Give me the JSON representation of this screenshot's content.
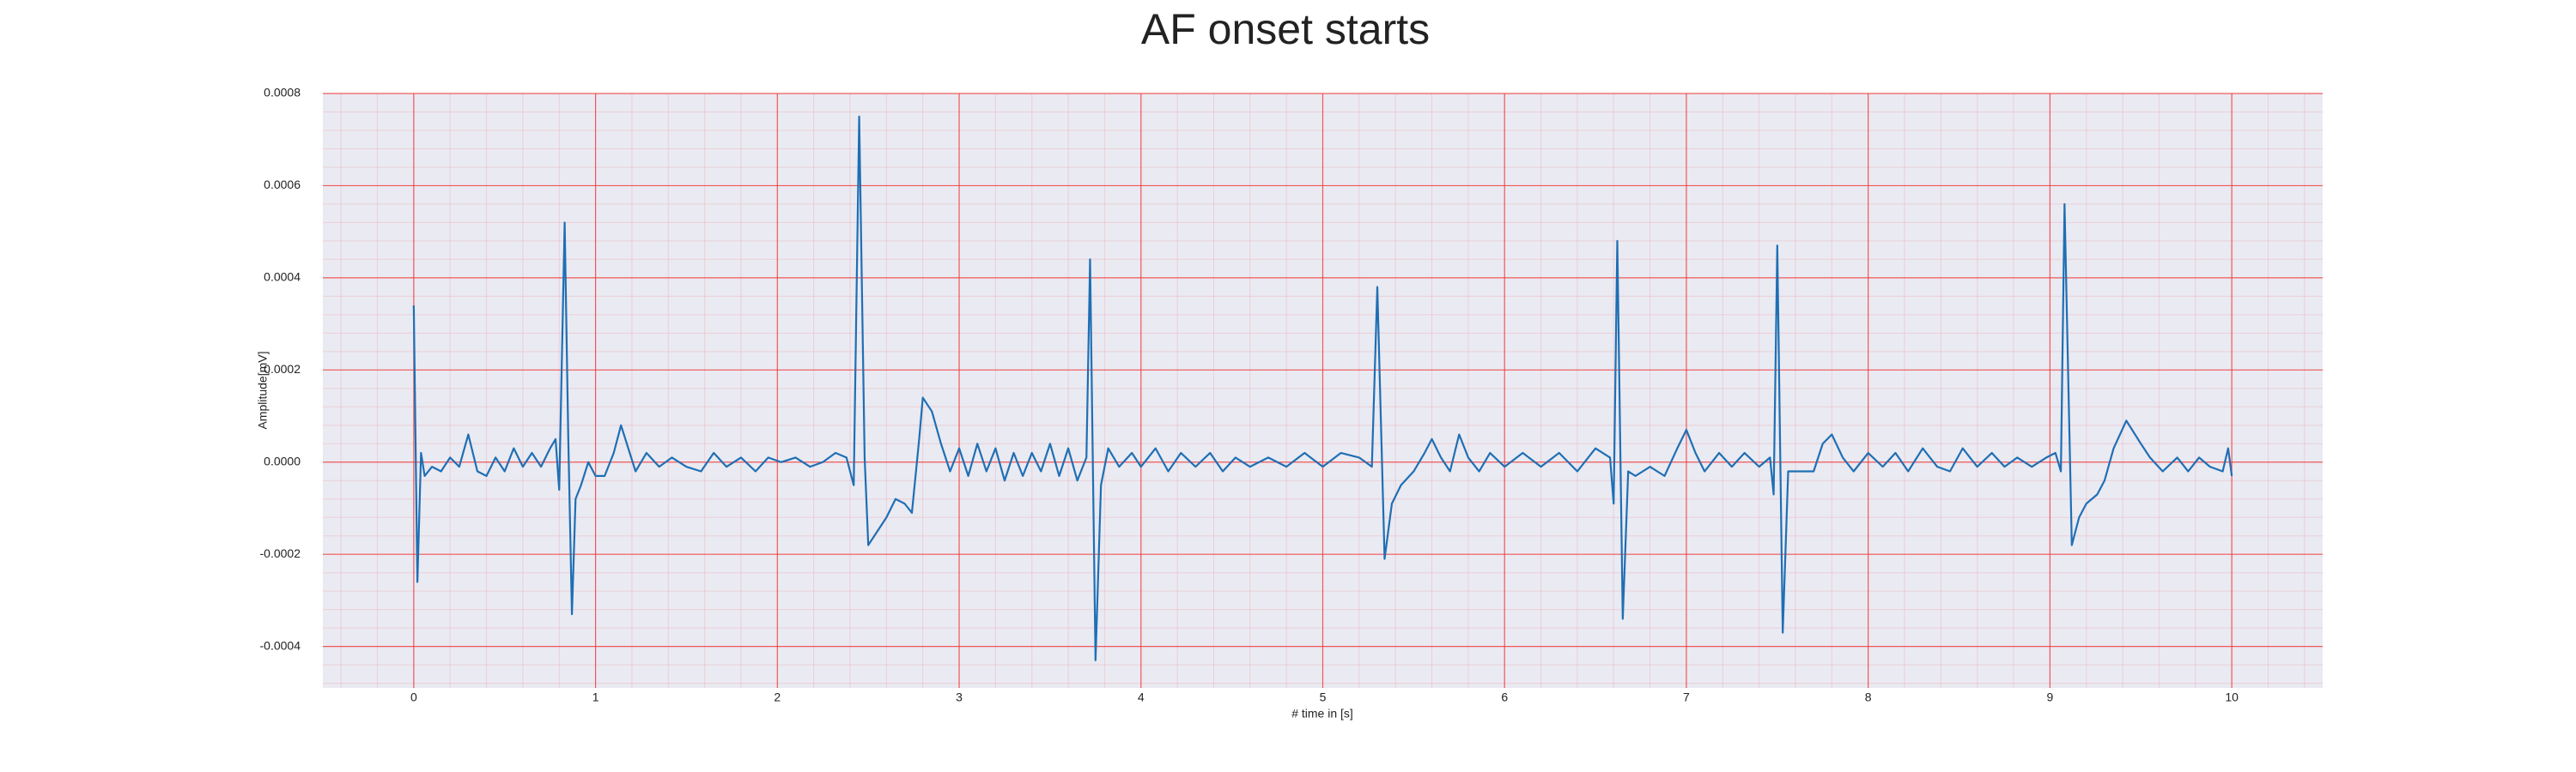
{
  "chart_data": {
    "type": "line",
    "title": "AF onset starts",
    "x_label": "# time in [s]",
    "y_label": "Amplitude[mV]",
    "xlim": [
      -0.5,
      10.5
    ],
    "xticks": [
      0,
      1,
      2,
      3,
      4,
      5,
      6,
      7,
      8,
      9,
      10
    ],
    "ylim": [
      -0.00049,
      0.0008
    ],
    "yticks": [
      {
        "value": -0.0004,
        "label": "-0.0004"
      },
      {
        "value": -0.0002,
        "label": "-0.0002"
      },
      {
        "value": 0,
        "label": "0.0000"
      },
      {
        "value": 0.0002,
        "label": "0.0002"
      },
      {
        "value": 0.0004,
        "label": "0.0004"
      },
      {
        "value": 0.0006,
        "label": "0.0006"
      },
      {
        "value": 0.0008,
        "label": "0.0008"
      }
    ],
    "grid": true,
    "minor_grid": true,
    "grid_color": "#f03a3a",
    "background": "#eaeaf2",
    "series": [
      {
        "color": "#1f6fb4",
        "x": [
          0,
          0.02,
          0.04,
          0.06,
          0.1,
          0.15,
          0.2,
          0.25,
          0.3,
          0.35,
          0.4,
          0.45,
          0.5,
          0.55,
          0.6,
          0.65,
          0.7,
          0.75,
          0.78,
          0.8,
          0.83,
          0.85,
          0.87,
          0.89,
          0.92,
          0.96,
          1.0,
          1.05,
          1.1,
          1.14,
          1.18,
          1.22,
          1.28,
          1.35,
          1.42,
          1.5,
          1.58,
          1.65,
          1.72,
          1.8,
          1.88,
          1.95,
          2.02,
          2.1,
          2.18,
          2.25,
          2.32,
          2.38,
          2.42,
          2.45,
          2.48,
          2.5,
          2.55,
          2.6,
          2.65,
          2.7,
          2.74,
          2.78,
          2.8,
          2.85,
          2.9,
          2.95,
          3.0,
          3.05,
          3.1,
          3.15,
          3.2,
          3.25,
          3.3,
          3.35,
          3.4,
          3.45,
          3.5,
          3.55,
          3.6,
          3.65,
          3.7,
          3.72,
          3.75,
          3.78,
          3.82,
          3.88,
          3.95,
          4.0,
          4.08,
          4.15,
          4.22,
          4.3,
          4.38,
          4.45,
          4.52,
          4.6,
          4.7,
          4.8,
          4.9,
          5.0,
          5.1,
          5.2,
          5.27,
          5.3,
          5.34,
          5.38,
          5.43,
          5.5,
          5.56,
          5.6,
          5.65,
          5.7,
          5.75,
          5.8,
          5.86,
          5.92,
          6.0,
          6.1,
          6.2,
          6.3,
          6.4,
          6.5,
          6.58,
          6.6,
          6.62,
          6.65,
          6.68,
          6.72,
          6.8,
          6.88,
          6.95,
          7.0,
          7.05,
          7.1,
          7.18,
          7.25,
          7.32,
          7.4,
          7.46,
          7.48,
          7.5,
          7.53,
          7.56,
          7.62,
          7.7,
          7.75,
          7.8,
          7.86,
          7.92,
          8.0,
          8.08,
          8.15,
          8.22,
          8.3,
          8.38,
          8.45,
          8.52,
          8.6,
          8.68,
          8.75,
          8.82,
          8.9,
          8.98,
          9.03,
          9.06,
          9.08,
          9.12,
          9.16,
          9.2,
          9.26,
          9.3,
          9.35,
          9.42,
          9.5,
          9.55,
          9.62,
          9.7,
          9.76,
          9.82,
          9.88,
          9.95,
          9.98,
          10.0
        ],
        "values": [
          0.00034,
          -0.00026,
          2e-05,
          -3e-05,
          -1e-05,
          -2e-05,
          1e-05,
          -1e-05,
          6e-05,
          -2e-05,
          -3e-05,
          1e-05,
          -2e-05,
          3e-05,
          -1e-05,
          2e-05,
          -1e-05,
          3e-05,
          5e-05,
          -6e-05,
          0.00052,
          5e-05,
          -0.00033,
          -8e-05,
          -5e-05,
          0,
          -3e-05,
          -3e-05,
          2e-05,
          8e-05,
          3e-05,
          -2e-05,
          2e-05,
          -1e-05,
          1e-05,
          -1e-05,
          -2e-05,
          2e-05,
          -1e-05,
          1e-05,
          -2e-05,
          1e-05,
          0,
          1e-05,
          -1e-05,
          0,
          2e-05,
          1e-05,
          -5e-05,
          0.00075,
          1e-05,
          -0.00018,
          -0.00015,
          -0.00012,
          -8e-05,
          -9e-05,
          -0.00011,
          5e-05,
          0.00014,
          0.00011,
          4e-05,
          -2e-05,
          3e-05,
          -3e-05,
          4e-05,
          -2e-05,
          3e-05,
          -4e-05,
          2e-05,
          -3e-05,
          2e-05,
          -2e-05,
          4e-05,
          -3e-05,
          3e-05,
          -4e-05,
          1e-05,
          0.00044,
          -0.00043,
          -5e-05,
          3e-05,
          -1e-05,
          2e-05,
          -1e-05,
          3e-05,
          -2e-05,
          2e-05,
          -1e-05,
          2e-05,
          -2e-05,
          1e-05,
          -1e-05,
          1e-05,
          -1e-05,
          2e-05,
          -1e-05,
          2e-05,
          1e-05,
          -1e-05,
          0.00038,
          -0.00021,
          -9e-05,
          -5e-05,
          -2e-05,
          2e-05,
          5e-05,
          1e-05,
          -2e-05,
          6e-05,
          1e-05,
          -2e-05,
          2e-05,
          -1e-05,
          2e-05,
          -1e-05,
          2e-05,
          -2e-05,
          3e-05,
          1e-05,
          -9e-05,
          0.00048,
          -0.00034,
          -2e-05,
          -3e-05,
          -1e-05,
          -3e-05,
          3e-05,
          7e-05,
          2e-05,
          -2e-05,
          2e-05,
          -1e-05,
          2e-05,
          -1e-05,
          1e-05,
          -7e-05,
          0.00047,
          -0.00037,
          -2e-05,
          -2e-05,
          -2e-05,
          4e-05,
          6e-05,
          1e-05,
          -2e-05,
          2e-05,
          -1e-05,
          2e-05,
          -2e-05,
          3e-05,
          -1e-05,
          -2e-05,
          3e-05,
          -1e-05,
          2e-05,
          -1e-05,
          1e-05,
          -1e-05,
          1e-05,
          2e-05,
          -2e-05,
          0.00056,
          -0.00018,
          -0.00012,
          -9e-05,
          -7e-05,
          -4e-05,
          3e-05,
          9e-05,
          4e-05,
          1e-05,
          -2e-05,
          1e-05,
          -2e-05,
          1e-05,
          -1e-05,
          -2e-05,
          3e-05,
          -3e-05
        ]
      }
    ]
  }
}
